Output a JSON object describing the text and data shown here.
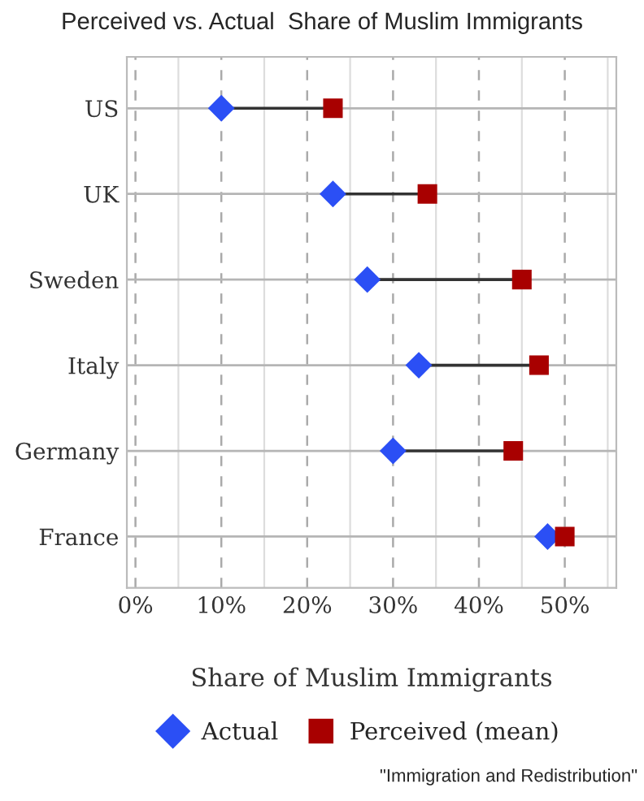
{
  "chart_data": {
    "type": "scatter",
    "title": "Perceived vs. Actual  Share of Muslim Immigrants",
    "xlabel": "Share of Muslim Immigrants",
    "orientation": "horizontal",
    "categories": [
      "US",
      "UK",
      "Sweden",
      "Italy",
      "Germany",
      "France"
    ],
    "series": [
      {
        "name": "Actual",
        "color": "#2b4ff5",
        "marker": "diamond",
        "values": [
          10,
          23,
          27,
          33,
          30,
          48
        ]
      },
      {
        "name": "Perceived (mean)",
        "color": "#a80000",
        "marker": "square",
        "values": [
          23,
          34,
          45,
          47,
          44,
          50
        ]
      }
    ],
    "xlim": [
      -1,
      56
    ],
    "xticks": [
      {
        "value": 0,
        "label": "0%"
      },
      {
        "value": 5,
        "label": null
      },
      {
        "value": 10,
        "label": "10%"
      },
      {
        "value": 15,
        "label": null
      },
      {
        "value": 20,
        "label": "20%"
      },
      {
        "value": 25,
        "label": null
      },
      {
        "value": 30,
        "label": "30%"
      },
      {
        "value": 35,
        "label": null
      },
      {
        "value": 40,
        "label": "40%"
      },
      {
        "value": 45,
        "label": null
      },
      {
        "value": 50,
        "label": "50%"
      },
      {
        "value": 55,
        "label": null
      }
    ],
    "grid": true,
    "legend": "bottom",
    "annotations": [
      "\"Immigration and Redistribution\""
    ]
  }
}
